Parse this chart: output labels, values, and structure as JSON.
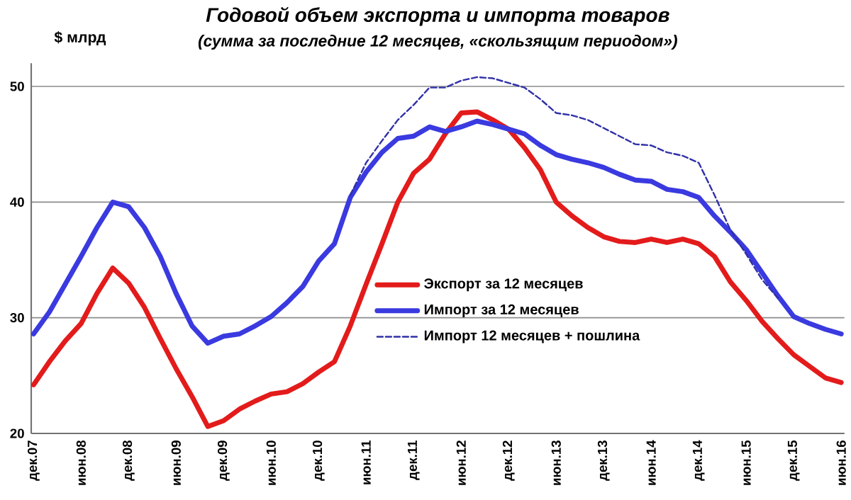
{
  "chart_data": {
    "type": "line",
    "title": "Годовой объем экспорта и импорта товаров",
    "subtitle": "(сумма за последние 12 месяцев, «скользящим периодом»)",
    "ylabel": "$ млрд",
    "categories": [
      "дек.07",
      null,
      null,
      "июн.08",
      null,
      null,
      "дек.08",
      null,
      null,
      "июн.09",
      null,
      null,
      "дек.09",
      null,
      null,
      "июн.10",
      null,
      null,
      "дек.10",
      null,
      null,
      "июн.11",
      null,
      null,
      "дек.11",
      null,
      null,
      "июн.12",
      null,
      null,
      "дек.12",
      null,
      null,
      "июн.13",
      null,
      null,
      "дек.13",
      null,
      null,
      "июн.14",
      null,
      null,
      "дек.14",
      null,
      null,
      "июн.15",
      null,
      null,
      "дек.15",
      null,
      null,
      "июн.16"
    ],
    "series": [
      {
        "name": "Экспорт за 12 месяцев",
        "color": "#e31b1b",
        "line_style": "solid",
        "values": [
          24.2,
          26.2,
          28.0,
          29.5,
          32.1,
          34.3,
          33.0,
          30.9,
          28.2,
          25.6,
          23.2,
          20.6,
          21.1,
          22.1,
          22.8,
          23.4,
          23.6,
          24.3,
          25.3,
          26.2,
          29.3,
          32.9,
          36.4,
          40.0,
          42.5,
          43.7,
          45.9,
          47.7,
          47.8,
          47.1,
          46.3,
          44.7,
          42.8,
          40.0,
          38.8,
          37.8,
          37.0,
          36.6,
          36.5,
          36.8,
          36.5,
          36.8,
          36.4,
          35.3,
          33.1,
          31.5,
          29.7,
          28.2,
          26.8,
          25.8,
          24.8,
          24.4
        ]
      },
      {
        "name": "Импорт за 12 месяцев",
        "color": "#3a3ae0",
        "line_style": "solid",
        "values": [
          28.6,
          30.5,
          32.9,
          35.3,
          37.8,
          40.0,
          39.6,
          37.8,
          35.3,
          32.1,
          29.3,
          27.8,
          28.4,
          28.6,
          29.3,
          30.1,
          31.3,
          32.7,
          34.9,
          36.4,
          40.4,
          42.6,
          44.3,
          45.5,
          45.7,
          46.5,
          46.1,
          46.5,
          47.0,
          46.7,
          46.3,
          45.9,
          44.9,
          44.1,
          43.7,
          43.4,
          43.0,
          42.4,
          41.9,
          41.8,
          41.1,
          40.9,
          40.4,
          38.8,
          37.4,
          35.9,
          33.9,
          31.9,
          30.1,
          29.5,
          29.0,
          28.6
        ]
      },
      {
        "name": "Импорт 12 месяцев + пошлина",
        "color": "#3030a8",
        "line_style": "dashed",
        "values": [
          null,
          null,
          null,
          null,
          null,
          null,
          null,
          null,
          null,
          null,
          null,
          null,
          null,
          null,
          null,
          null,
          null,
          null,
          null,
          null,
          40.6,
          43.4,
          45.3,
          47.1,
          48.4,
          49.9,
          49.9,
          50.5,
          50.8,
          50.7,
          50.3,
          49.9,
          48.9,
          47.7,
          47.5,
          47.1,
          46.4,
          45.7,
          45.0,
          44.9,
          44.3,
          44.0,
          43.4,
          40.6,
          37.6,
          35.5,
          33.3,
          31.7,
          null,
          null,
          null,
          null
        ]
      }
    ],
    "ylim": [
      20,
      52
    ],
    "yticks": [
      20,
      30,
      40,
      50
    ],
    "grid": "y",
    "legend": "bottom right",
    "marker": "none"
  }
}
